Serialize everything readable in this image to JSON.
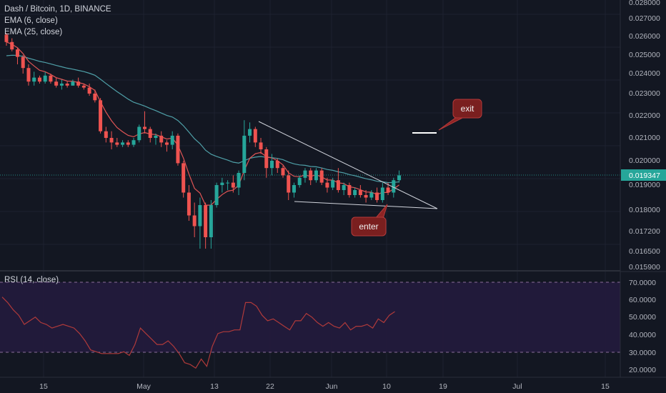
{
  "legend": {
    "symbol": "Dash / Bitcoin, 1D, BINANCE",
    "ema_short": "EMA (6, close)",
    "ema_long": "EMA (25, close)",
    "rsi": "RSI (14, close)"
  },
  "price_axis": {
    "labels": [
      "0.028000",
      "0.027000",
      "0.026000",
      "0.025000",
      "0.024000",
      "0.023000",
      "0.022000",
      "0.021000",
      "0.020000",
      "0.019000",
      "0.018000",
      "0.017200",
      "0.016500",
      "0.015900"
    ],
    "current_price": "0.019347"
  },
  "rsi_axis": {
    "labels": [
      "70.0000",
      "60.0000",
      "50.0000",
      "40.0000",
      "30.0000",
      "20.0000"
    ]
  },
  "time_axis": {
    "labels": [
      "15",
      "May",
      "13",
      "22",
      "Jun",
      "10",
      "19",
      "Jul",
      "15"
    ]
  },
  "annotations": {
    "exit_label": "exit",
    "enter_label": "enter"
  },
  "colors": {
    "up": "#26a69a",
    "down": "#ef5350",
    "background": "#131722",
    "rsi_band": "#2a1f44",
    "ema_short": "#e05555",
    "ema_long": "#4fa0a8"
  },
  "chart_data": {
    "type": "candlestick",
    "title": "Dash / Bitcoin, 1D, BINANCE",
    "ylim": [
      0.0159,
      0.0282
    ],
    "candles": [
      [
        0.0261,
        0.0262,
        0.0255,
        0.0257
      ],
      [
        0.0257,
        0.0259,
        0.0252,
        0.0253
      ],
      [
        0.0253,
        0.0254,
        0.0245,
        0.0249
      ],
      [
        0.0249,
        0.025,
        0.024,
        0.0243
      ],
      [
        0.0243,
        0.0245,
        0.0234,
        0.0236
      ],
      [
        0.0236,
        0.0241,
        0.0234,
        0.0238
      ],
      [
        0.0238,
        0.0239,
        0.0235,
        0.0236
      ],
      [
        0.0236,
        0.0241,
        0.0235,
        0.0239
      ],
      [
        0.0239,
        0.024,
        0.0235,
        0.0236
      ],
      [
        0.0236,
        0.0238,
        0.0233,
        0.0234
      ],
      [
        0.0234,
        0.0237,
        0.0232,
        0.0235
      ],
      [
        0.0235,
        0.0236,
        0.0233,
        0.0234
      ],
      [
        0.0234,
        0.0237,
        0.0234,
        0.0236
      ],
      [
        0.0236,
        0.0238,
        0.0233,
        0.0234
      ],
      [
        0.0234,
        0.0235,
        0.0232,
        0.0233
      ],
      [
        0.0233,
        0.0235,
        0.0229,
        0.023
      ],
      [
        0.023,
        0.0232,
        0.0226,
        0.0227
      ],
      [
        0.0227,
        0.0228,
        0.0212,
        0.0213
      ],
      [
        0.0213,
        0.0215,
        0.0208,
        0.021
      ],
      [
        0.021,
        0.0213,
        0.0205,
        0.0208
      ],
      [
        0.0208,
        0.021,
        0.0206,
        0.0207
      ],
      [
        0.0207,
        0.0209,
        0.0206,
        0.0208
      ],
      [
        0.0208,
        0.0209,
        0.0206,
        0.0207
      ],
      [
        0.0207,
        0.021,
        0.0206,
        0.0209
      ],
      [
        0.0209,
        0.0216,
        0.0208,
        0.0215
      ],
      [
        0.0215,
        0.0222,
        0.0212,
        0.0214
      ],
      [
        0.0214,
        0.0215,
        0.0208,
        0.021
      ],
      [
        0.021,
        0.0212,
        0.0207,
        0.0211
      ],
      [
        0.0211,
        0.0213,
        0.0206,
        0.0208
      ],
      [
        0.0208,
        0.0209,
        0.0204,
        0.0207
      ],
      [
        0.0207,
        0.0213,
        0.0205,
        0.0211
      ],
      [
        0.0211,
        0.0212,
        0.0198,
        0.0199
      ],
      [
        0.0199,
        0.02,
        0.0185,
        0.0187
      ],
      [
        0.0187,
        0.019,
        0.0176,
        0.0178
      ],
      [
        0.0178,
        0.0183,
        0.017,
        0.0174
      ],
      [
        0.0174,
        0.0185,
        0.0166,
        0.0182
      ],
      [
        0.0182,
        0.0183,
        0.0166,
        0.017
      ],
      [
        0.017,
        0.0184,
        0.0166,
        0.0182
      ],
      [
        0.0182,
        0.0191,
        0.0181,
        0.019
      ],
      [
        0.019,
        0.0193,
        0.0187,
        0.0191
      ],
      [
        0.0191,
        0.0192,
        0.0188,
        0.0191
      ],
      [
        0.0191,
        0.0194,
        0.0187,
        0.0189
      ],
      [
        0.0189,
        0.0196,
        0.0186,
        0.0195
      ],
      [
        0.0195,
        0.0218,
        0.0192,
        0.0211
      ],
      [
        0.0211,
        0.0217,
        0.0208,
        0.0214
      ],
      [
        0.0214,
        0.0215,
        0.0206,
        0.0208
      ],
      [
        0.0208,
        0.021,
        0.0203,
        0.0205
      ],
      [
        0.0205,
        0.0206,
        0.0193,
        0.0197
      ],
      [
        0.0197,
        0.0203,
        0.0194,
        0.02
      ],
      [
        0.02,
        0.0201,
        0.0195,
        0.0197
      ],
      [
        0.0197,
        0.0198,
        0.0193,
        0.0194
      ],
      [
        0.0194,
        0.0196,
        0.0184,
        0.0187
      ],
      [
        0.0187,
        0.0191,
        0.0185,
        0.019
      ],
      [
        0.019,
        0.0194,
        0.0189,
        0.0193
      ],
      [
        0.0193,
        0.0197,
        0.0191,
        0.0196
      ],
      [
        0.0196,
        0.0197,
        0.019,
        0.0192
      ],
      [
        0.0192,
        0.0197,
        0.0191,
        0.0196
      ],
      [
        0.0196,
        0.0197,
        0.019,
        0.0191
      ],
      [
        0.0191,
        0.0193,
        0.0187,
        0.0189
      ],
      [
        0.0189,
        0.0193,
        0.0188,
        0.0192
      ],
      [
        0.0192,
        0.0197,
        0.0187,
        0.0188
      ],
      [
        0.0188,
        0.0191,
        0.0186,
        0.019
      ],
      [
        0.019,
        0.0191,
        0.0185,
        0.0186
      ],
      [
        0.0186,
        0.0189,
        0.0185,
        0.0188
      ],
      [
        0.0188,
        0.019,
        0.0185,
        0.0186
      ],
      [
        0.0186,
        0.0188,
        0.0183,
        0.0185
      ],
      [
        0.0185,
        0.0188,
        0.0184,
        0.0187
      ],
      [
        0.0187,
        0.0189,
        0.0183,
        0.0184
      ],
      [
        0.0184,
        0.0191,
        0.0183,
        0.0189
      ],
      [
        0.0189,
        0.0191,
        0.0186,
        0.0187
      ],
      [
        0.0187,
        0.0193,
        0.0185,
        0.0192
      ],
      [
        0.0192,
        0.0196,
        0.0191,
        0.0194
      ]
    ],
    "rsi": [
      60,
      57,
      53,
      50,
      45,
      47,
      49,
      46,
      45,
      43,
      44,
      45,
      44,
      43,
      40,
      36,
      31,
      30,
      29,
      29,
      29,
      29,
      30,
      28,
      34,
      43,
      40,
      37,
      34,
      34,
      36,
      33,
      29,
      24,
      23,
      21,
      26,
      22,
      33,
      40,
      41,
      41,
      42,
      42,
      57,
      57,
      55,
      50,
      47,
      48,
      46,
      44,
      42,
      47,
      47,
      51,
      49,
      46,
      44,
      46,
      44,
      43,
      46,
      42,
      44,
      44,
      45,
      43,
      48,
      46,
      50,
      52
    ],
    "rsi_levels": [
      70,
      30
    ],
    "rsi_ylim": [
      16,
      74
    ]
  }
}
